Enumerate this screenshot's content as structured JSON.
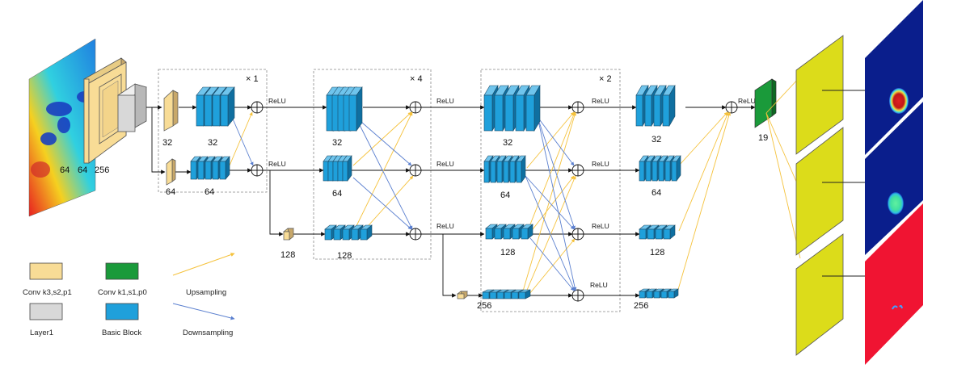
{
  "stage_repeats": {
    "s1": "× 1",
    "s2": "× 4",
    "s3": "× 2"
  },
  "relu": "ReLU",
  "stem_labels": [
    "64",
    "64",
    "256"
  ],
  "channels": {
    "c32": "32",
    "c64": "64",
    "c128": "128",
    "c256": "256"
  },
  "output_channels": "19",
  "legend": {
    "conv_k3": "Conv k3,s2,p1",
    "conv_k1": "Conv k1,s1,p0",
    "upsampling": "Upsampling",
    "layer1": "Layer1",
    "basic_block": "Basic Block",
    "downsampling": "Downsampling"
  },
  "colors": {
    "conv": "#f8dc96",
    "conv_dark": "#c8a86a",
    "layer1": "#d8d8d8",
    "basic_block": "#1fa0db",
    "basic_block_side": "#0f6fa0",
    "final_conv": "#1a9a3a",
    "upsampling": "#f5c23c",
    "downsampling": "#5a7fcf",
    "yellow_map": "#dcdc1a",
    "seg_bg_blue": "#0a1e8c",
    "seg_bg_red": "#f01432"
  }
}
